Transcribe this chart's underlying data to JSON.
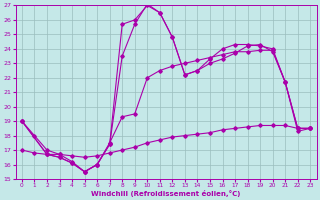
{
  "xlabel": "Windchill (Refroidissement éolien,°C)",
  "ylabel": "",
  "xlim": [
    -0.5,
    23.5
  ],
  "ylim": [
    15,
    27
  ],
  "xticks": [
    0,
    1,
    2,
    3,
    4,
    5,
    6,
    7,
    8,
    9,
    10,
    11,
    12,
    13,
    14,
    15,
    16,
    17,
    18,
    19,
    20,
    21,
    22,
    23
  ],
  "yticks": [
    15,
    16,
    17,
    18,
    19,
    20,
    21,
    22,
    23,
    24,
    25,
    26,
    27
  ],
  "bg_color": "#c5e8e8",
  "grid_color": "#9bbebe",
  "line_color": "#aa00aa",
  "figsize": [
    3.2,
    2.0
  ],
  "dpi": 100,
  "lines": [
    {
      "x": [
        0,
        1,
        2,
        3,
        4,
        5,
        6,
        7,
        8,
        9,
        10,
        11,
        12,
        13,
        14,
        15,
        16,
        17,
        18,
        19,
        20,
        21,
        22,
        23
      ],
      "y": [
        17.0,
        16.8,
        16.7,
        16.7,
        16.6,
        16.5,
        16.6,
        16.8,
        17.0,
        17.2,
        17.5,
        17.7,
        17.9,
        18.0,
        18.1,
        18.2,
        18.4,
        18.5,
        18.6,
        18.7,
        18.7,
        18.7,
        18.5,
        18.5
      ]
    },
    {
      "x": [
        0,
        1,
        2,
        3,
        4,
        5,
        6,
        7,
        8,
        9,
        10,
        11,
        12,
        13,
        14,
        15,
        16,
        17,
        18,
        19,
        20,
        21,
        22,
        23
      ],
      "y": [
        19.0,
        18.0,
        17.0,
        16.7,
        16.2,
        15.5,
        16.0,
        17.5,
        19.3,
        19.5,
        22.0,
        22.5,
        22.8,
        23.0,
        23.2,
        23.4,
        23.6,
        23.8,
        23.8,
        23.9,
        23.9,
        21.7,
        18.5,
        18.5
      ]
    },
    {
      "x": [
        0,
        2,
        3,
        4,
        5,
        6,
        7,
        8,
        9,
        10,
        11,
        12,
        13,
        14,
        15,
        16,
        17,
        18,
        19,
        20,
        21,
        22,
        23
      ],
      "y": [
        19.0,
        16.7,
        16.5,
        16.1,
        15.5,
        16.0,
        17.4,
        23.5,
        25.7,
        27.1,
        26.5,
        24.8,
        22.2,
        22.5,
        23.0,
        23.3,
        23.7,
        24.2,
        24.3,
        23.8,
        21.7,
        18.5,
        18.5
      ]
    },
    {
      "x": [
        0,
        2,
        3,
        4,
        5,
        6,
        7,
        8,
        9,
        10,
        11,
        12,
        13,
        14,
        15,
        16,
        17,
        18,
        19,
        20,
        21,
        22,
        23
      ],
      "y": [
        19.0,
        16.7,
        16.5,
        16.1,
        15.5,
        16.0,
        17.4,
        25.7,
        26.0,
        27.0,
        26.5,
        24.8,
        22.2,
        22.5,
        23.3,
        24.0,
        24.3,
        24.3,
        24.2,
        24.0,
        21.7,
        18.3,
        18.5
      ]
    }
  ]
}
